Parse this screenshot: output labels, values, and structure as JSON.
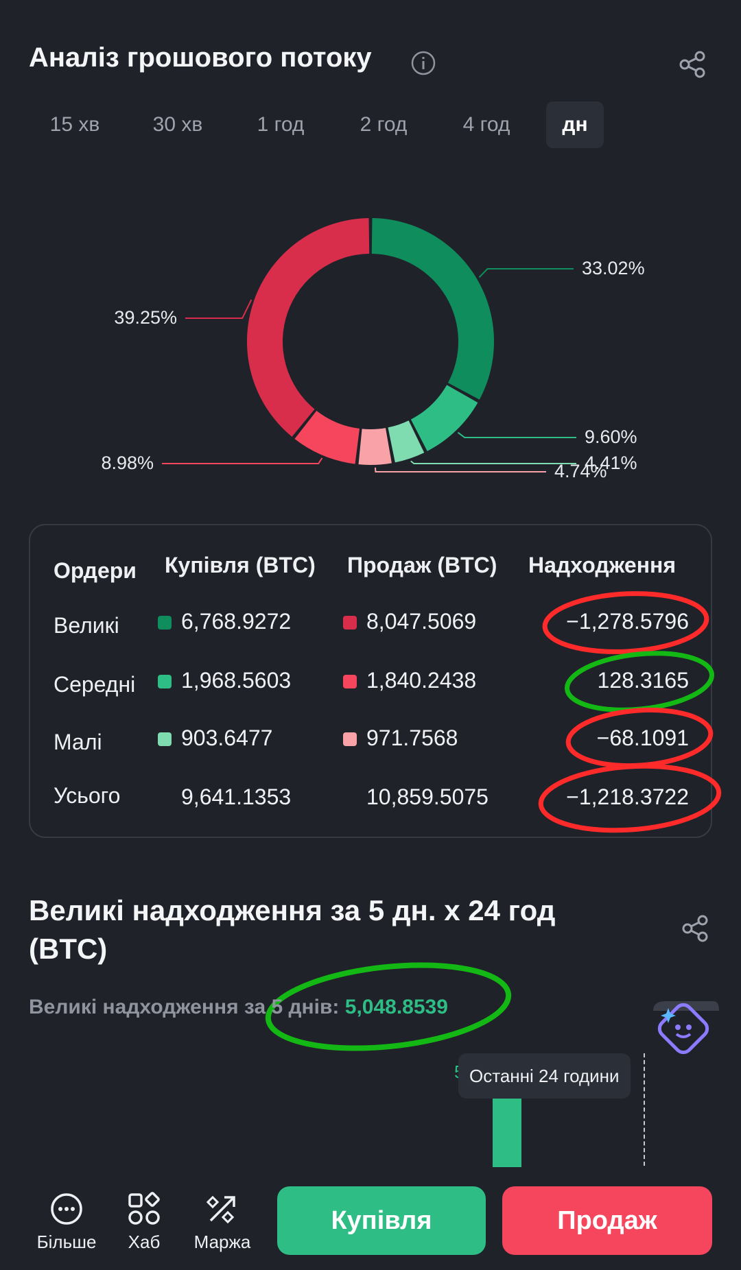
{
  "header": {
    "title": "Аналіз грошового потоку"
  },
  "tabs": [
    {
      "label": "15 хв",
      "active": false
    },
    {
      "label": "30 хв",
      "active": false
    },
    {
      "label": "1 год",
      "active": false
    },
    {
      "label": "2 год",
      "active": false
    },
    {
      "label": "4 год",
      "active": false
    },
    {
      "label": "дн",
      "active": true
    }
  ],
  "donut": {
    "segments": [
      {
        "label": "33.02%",
        "value": 33.02,
        "color": "#0f8d5c"
      },
      {
        "label": "9.60%",
        "value": 9.6,
        "color": "#2ebd85"
      },
      {
        "label": "4.41%",
        "value": 4.41,
        "color": "#7fdcb0"
      },
      {
        "label": "4.74%",
        "value": 4.74,
        "color": "#f9a3a8"
      },
      {
        "label": "8.98%",
        "value": 8.98,
        "color": "#f6465d"
      },
      {
        "label": "39.25%",
        "value": 39.25,
        "color": "#d92e4b"
      }
    ]
  },
  "orders_table": {
    "headers": [
      "Ордери",
      "Купівля (BTC)",
      "Продаж (BTC)",
      "Надходження"
    ],
    "rows": [
      {
        "label": "Великі",
        "buy": "6,768.9272",
        "sell": "8,047.5069",
        "net": "−1,278.5796",
        "buy_color": "#0f8d5c",
        "sell_color": "#d92e4b"
      },
      {
        "label": "Середні",
        "buy": "1,968.5603",
        "sell": "1,840.2438",
        "net": "128.3165",
        "buy_color": "#2ebd85",
        "sell_color": "#f6465d"
      },
      {
        "label": "Малі",
        "buy": "903.6477",
        "sell": "971.7568",
        "net": "−68.1091",
        "buy_color": "#7fdcb0",
        "sell_color": "#f9a3a8"
      },
      {
        "label": "Усього",
        "buy": "9,641.1353",
        "sell": "10,859.5075",
        "net": "−1,218.3722"
      }
    ]
  },
  "large_inflow": {
    "title": "Великі надходження за 5 дн. x 24 год (BTC)",
    "summary_label": "Великі надходження за 5 днів:",
    "summary_value": "5,048.8539",
    "tooltip": "Останні 24 години",
    "tooltip_peek": "5"
  },
  "bottom_nav": {
    "more": "Більше",
    "hub": "Хаб",
    "margin": "Маржа",
    "buy": "Купівля",
    "sell": "Продаж"
  },
  "colors": {
    "background": "#1f2229",
    "buy": "#2ebd85",
    "sell": "#f6465d",
    "annotation_red": "#ff2a2a",
    "annotation_green": "#14b814"
  }
}
